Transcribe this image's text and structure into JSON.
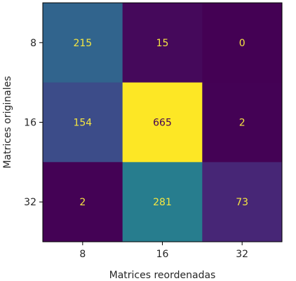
{
  "chart_data": {
    "type": "heatmap",
    "title": "",
    "xlabel": "Matrices reordenadas",
    "ylabel": "Matrices originales",
    "x_categories": [
      "8",
      "16",
      "32"
    ],
    "y_categories": [
      "8",
      "16",
      "32"
    ],
    "values": [
      [
        215,
        15,
        0
      ],
      [
        154,
        665,
        2
      ],
      [
        2,
        281,
        73
      ]
    ],
    "value_labels": [
      [
        "215",
        "15",
        "0"
      ],
      [
        "154",
        "665",
        "2"
      ],
      [
        "2",
        "281",
        "73"
      ]
    ],
    "colormap": "viridis",
    "vmin": 0,
    "vmax": 665,
    "colors": {
      "text_on_dark": "#f5e642",
      "text_on_light": "#440154"
    }
  }
}
